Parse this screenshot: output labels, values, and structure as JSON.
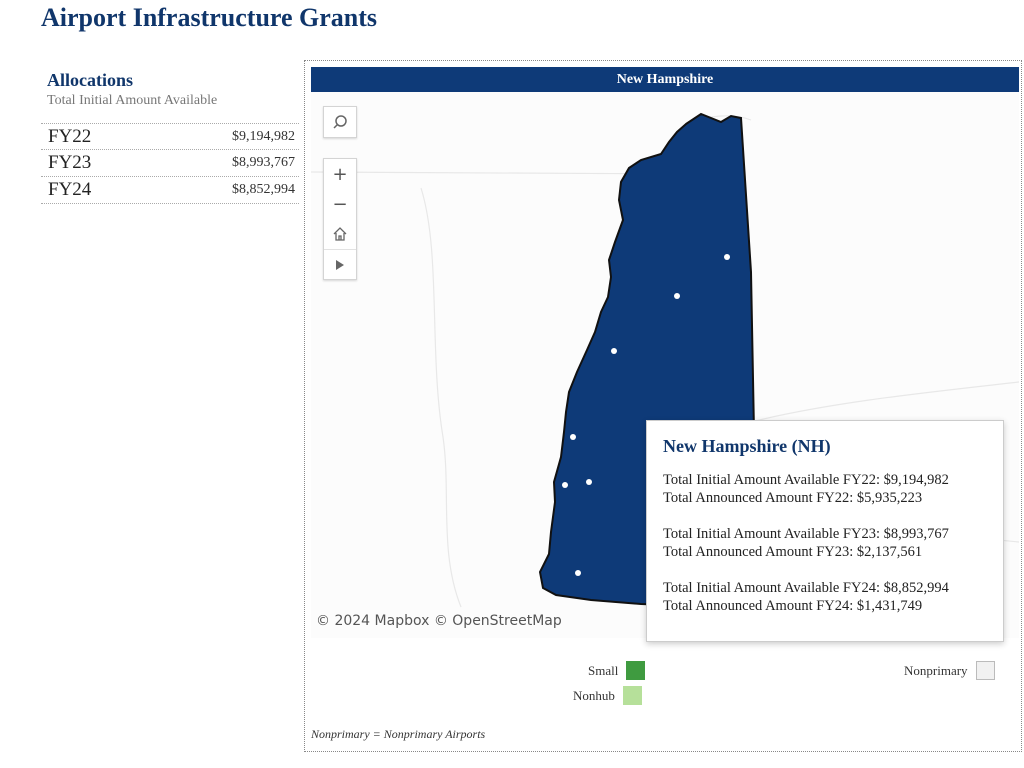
{
  "page": {
    "title": "Airport Infrastructure Grants"
  },
  "allocations": {
    "heading": "Allocations",
    "subheading": "Total Initial Amount Available",
    "rows": [
      {
        "year": "FY22",
        "amount": "$9,194,982"
      },
      {
        "year": "FY23",
        "amount": "$8,993,767"
      },
      {
        "year": "FY24",
        "amount": "$8,852,994"
      }
    ]
  },
  "map": {
    "title": "New Hampshire",
    "attribution": "© 2024 Mapbox  © OpenStreetMap",
    "state_fill": "#0e3a78",
    "tools": [
      "search-icon",
      "zoom-in-icon",
      "zoom-out-icon",
      "home-icon",
      "play-icon"
    ]
  },
  "tooltip": {
    "title": "New Hampshire (NH)",
    "groups": [
      {
        "initial": "Total Initial Amount Available FY22: $9,194,982",
        "announced": "Total Announced Amount FY22: $5,935,223"
      },
      {
        "initial": "Total Initial Amount Available FY23: $8,993,767",
        "announced": "Total Announced Amount FY23: $2,137,561"
      },
      {
        "initial": "Total Initial Amount Available FY24: $8,852,994",
        "announced": "Total Announced Amount FY24: $1,431,749"
      }
    ]
  },
  "legend": {
    "small": {
      "label": "Small",
      "color": "#3f9b40"
    },
    "nonhub": {
      "label": "Nonhub",
      "color": "#b6e09a"
    },
    "nonprimary": {
      "label": "Nonprimary",
      "color": "#f1f1f1"
    }
  },
  "footnote": "Nonprimary = Nonprimary Airports"
}
